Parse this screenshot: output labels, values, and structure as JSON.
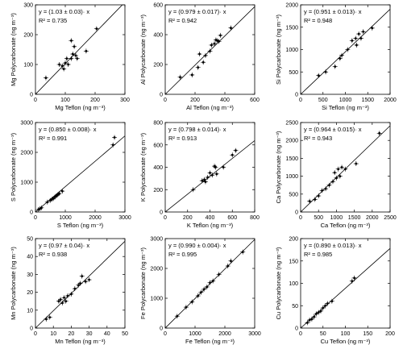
{
  "chart_data": [
    {
      "type": "scatter",
      "xlabel": "Mg Teflon (ng m⁻³)",
      "ylabel": "Mg Polycarbonate (ng m⁻³)",
      "xlim": [
        0,
        300
      ],
      "ylim": [
        0,
        300
      ],
      "xticks": [
        0,
        100,
        200,
        300
      ],
      "yticks": [
        0,
        100,
        200,
        300
      ],
      "fit_line_text": "y = (1.03 ± 0.03)· x",
      "r2_text": "R² = 0.735",
      "slope": 1.03,
      "points": [
        [
          35,
          55
        ],
        [
          80,
          100
        ],
        [
          90,
          95
        ],
        [
          95,
          85
        ],
        [
          100,
          105
        ],
        [
          105,
          120
        ],
        [
          110,
          100
        ],
        [
          120,
          120
        ],
        [
          120,
          180
        ],
        [
          125,
          135
        ],
        [
          130,
          160
        ],
        [
          135,
          130
        ],
        [
          140,
          120
        ],
        [
          170,
          145
        ],
        [
          205,
          220
        ]
      ]
    },
    {
      "type": "scatter",
      "xlabel": "Al Teflon (ng m⁻³)",
      "ylabel": "Al Polycarbonate (ng m⁻³)",
      "xlim": [
        0,
        600
      ],
      "ylim": [
        0,
        600
      ],
      "xticks": [
        0,
        200,
        400,
        600
      ],
      "yticks": [
        0,
        200,
        400,
        600
      ],
      "fit_line_text": "y = (0.979 ± 0.017)· x",
      "r2_text": "R² = 0.942",
      "slope": 0.979,
      "points": [
        [
          100,
          115
        ],
        [
          180,
          130
        ],
        [
          220,
          180
        ],
        [
          230,
          270
        ],
        [
          255,
          215
        ],
        [
          270,
          260
        ],
        [
          300,
          290
        ],
        [
          310,
          330
        ],
        [
          330,
          340
        ],
        [
          340,
          365
        ],
        [
          350,
          360
        ],
        [
          360,
          355
        ],
        [
          370,
          395
        ],
        [
          440,
          445
        ]
      ]
    },
    {
      "type": "scatter",
      "xlabel": "Si Teflon (ng m⁻³)",
      "ylabel": "Si Polycarbonate (ng m⁻³)",
      "xlim": [
        0,
        2000
      ],
      "ylim": [
        0,
        2000
      ],
      "xticks": [
        0,
        500,
        1000,
        1500,
        2000
      ],
      "yticks": [
        0,
        500,
        1000,
        1500,
        2000
      ],
      "fit_line_text": "y = (0.951 ± 0.013)· x",
      "r2_text": "R² = 0.948",
      "slope": 0.951,
      "points": [
        [
          400,
          420
        ],
        [
          560,
          500
        ],
        [
          770,
          620
        ],
        [
          880,
          800
        ],
        [
          920,
          870
        ],
        [
          1050,
          1000
        ],
        [
          1150,
          1200
        ],
        [
          1230,
          1250
        ],
        [
          1250,
          1100
        ],
        [
          1300,
          1350
        ],
        [
          1350,
          1250
        ],
        [
          1400,
          1400
        ],
        [
          1600,
          1480
        ]
      ]
    },
    {
      "type": "scatter",
      "xlabel": "S Teflon (ng m⁻³)",
      "ylabel": "S Polycarbonate (ng m⁻³)",
      "xlim": [
        0,
        3000
      ],
      "ylim": [
        0,
        3000
      ],
      "xticks": [
        0,
        1000,
        2000,
        3000
      ],
      "yticks": [
        0,
        1000,
        2000,
        3000
      ],
      "fit_line_text": "y = (0.850 ± 0.008)· x",
      "r2_text": "R² = 0.991",
      "slope": 0.85,
      "points": [
        [
          100,
          80
        ],
        [
          150,
          110
        ],
        [
          200,
          140
        ],
        [
          400,
          330
        ],
        [
          500,
          390
        ],
        [
          550,
          430
        ],
        [
          600,
          450
        ],
        [
          650,
          500
        ],
        [
          700,
          540
        ],
        [
          750,
          580
        ],
        [
          800,
          620
        ],
        [
          900,
          700
        ],
        [
          2600,
          2250
        ],
        [
          2650,
          2500
        ]
      ]
    },
    {
      "type": "scatter",
      "xlabel": "K Teflon (ng m⁻³)",
      "ylabel": "K Polycarbonate (ng m⁻³)",
      "xlim": [
        0,
        800
      ],
      "ylim": [
        0,
        800
      ],
      "xticks": [
        0,
        200,
        400,
        600,
        800
      ],
      "yticks": [
        0,
        200,
        400,
        600,
        800
      ],
      "fit_line_text": "y = (0.798 ± 0.014)· x",
      "r2_text": "R² = 0.913",
      "slope": 0.798,
      "points": [
        [
          250,
          200
        ],
        [
          330,
          280
        ],
        [
          350,
          290
        ],
        [
          360,
          270
        ],
        [
          380,
          310
        ],
        [
          400,
          350
        ],
        [
          420,
          330
        ],
        [
          440,
          410
        ],
        [
          450,
          400
        ],
        [
          460,
          340
        ],
        [
          520,
          400
        ],
        [
          600,
          510
        ],
        [
          630,
          550
        ]
      ]
    },
    {
      "type": "scatter",
      "xlabel": "Ca Teflon (ng m⁻³)",
      "ylabel": "Ca Polycarbonate (ng m⁻³)",
      "xlim": [
        0,
        2500
      ],
      "ylim": [
        0,
        2500
      ],
      "xticks": [
        0,
        500,
        1000,
        1500,
        2000,
        2500
      ],
      "yticks": [
        0,
        500,
        1000,
        1500,
        2000,
        2500
      ],
      "fit_line_text": "y = (0.964 ± 0.015)· x",
      "r2_text": "R² = 0.943",
      "slope": 0.964,
      "points": [
        [
          250,
          300
        ],
        [
          400,
          350
        ],
        [
          500,
          450
        ],
        [
          600,
          600
        ],
        [
          700,
          650
        ],
        [
          800,
          750
        ],
        [
          900,
          850
        ],
        [
          950,
          1100
        ],
        [
          1000,
          950
        ],
        [
          1050,
          1200
        ],
        [
          1100,
          1000
        ],
        [
          1150,
          1250
        ],
        [
          1250,
          1200
        ],
        [
          1550,
          1350
        ],
        [
          2200,
          2200
        ]
      ]
    },
    {
      "type": "scatter",
      "xlabel": "Mn Teflon (ng m⁻³)",
      "ylabel": "Mn Polycarbonate (ng m⁻³)",
      "xlim": [
        0,
        50
      ],
      "ylim": [
        0,
        50
      ],
      "xticks": [
        0,
        10,
        20,
        30,
        40,
        50
      ],
      "yticks": [
        0,
        10,
        20,
        30,
        40,
        50
      ],
      "fit_line_text": "y = (0.97 ± 0.04)· x",
      "r2_text": "R² = 0.938",
      "slope": 0.97,
      "points": [
        [
          6,
          5
        ],
        [
          8,
          6
        ],
        [
          13,
          15
        ],
        [
          14,
          16
        ],
        [
          15,
          14
        ],
        [
          16,
          17
        ],
        [
          17,
          15
        ],
        [
          18,
          18
        ],
        [
          20,
          19
        ],
        [
          22,
          22
        ],
        [
          24,
          24
        ],
        [
          25,
          25
        ],
        [
          26,
          29
        ],
        [
          28,
          26
        ],
        [
          30,
          27
        ]
      ]
    },
    {
      "type": "scatter",
      "xlabel": "Fe Teflon (ng m⁻³)",
      "ylabel": "Fe Polycarbonate (ng m⁻³)",
      "xlim": [
        0,
        3000
      ],
      "ylim": [
        0,
        3000
      ],
      "xticks": [
        0,
        1000,
        2000,
        3000
      ],
      "yticks": [
        0,
        1000,
        2000,
        3000
      ],
      "fit_line_text": "y = (0.990 ± 0.004)· x",
      "r2_text": "R² = 0.995",
      "slope": 0.99,
      "points": [
        [
          400,
          400
        ],
        [
          700,
          700
        ],
        [
          900,
          880
        ],
        [
          1100,
          1080
        ],
        [
          1200,
          1200
        ],
        [
          1300,
          1300
        ],
        [
          1400,
          1380
        ],
        [
          1500,
          1520
        ],
        [
          1600,
          1580
        ],
        [
          1800,
          1800
        ],
        [
          2100,
          2080
        ],
        [
          2200,
          2250
        ],
        [
          2600,
          2550
        ]
      ]
    },
    {
      "type": "scatter",
      "xlabel": "Cu Teflon (ng m⁻³)",
      "ylabel": "Cu Polycarbonate (ng m⁻³)",
      "xlim": [
        0,
        200
      ],
      "ylim": [
        0,
        200
      ],
      "xticks": [
        0,
        50,
        100,
        150,
        200
      ],
      "yticks": [
        0,
        50,
        100,
        150,
        200
      ],
      "fit_line_text": "y = (0.890 ± 0.013)· x",
      "r2_text": "R² = 0.985",
      "slope": 0.89,
      "points": [
        [
          15,
          12
        ],
        [
          20,
          18
        ],
        [
          25,
          20
        ],
        [
          30,
          25
        ],
        [
          35,
          32
        ],
        [
          40,
          35
        ],
        [
          45,
          38
        ],
        [
          50,
          45
        ],
        [
          55,
          50
        ],
        [
          60,
          55
        ],
        [
          70,
          60
        ],
        [
          115,
          105
        ],
        [
          120,
          112
        ]
      ]
    }
  ]
}
